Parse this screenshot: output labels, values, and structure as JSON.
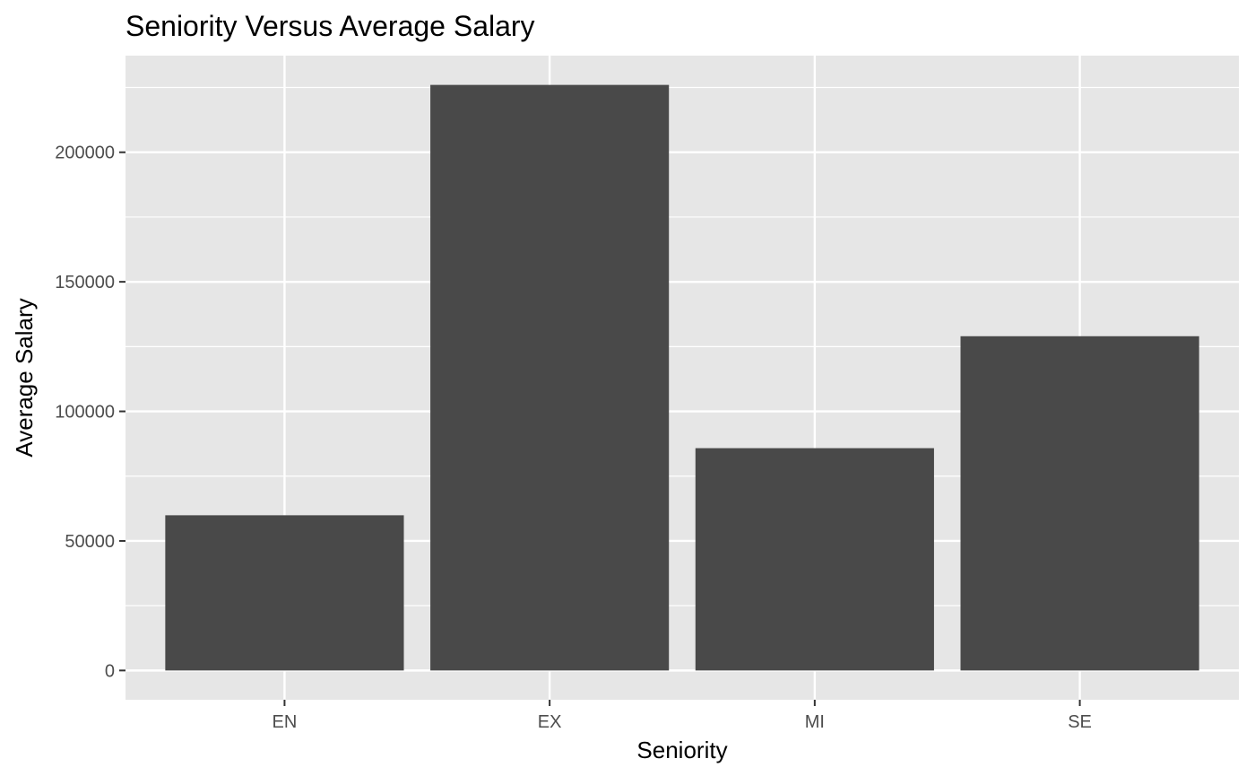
{
  "chart_data": {
    "type": "bar",
    "title": "Seniority Versus Average Salary",
    "xlabel": "Seniority",
    "ylabel": "Average Salary",
    "categories": [
      "EN",
      "EX",
      "MI",
      "SE"
    ],
    "values": [
      59900,
      226000,
      85800,
      129000
    ],
    "ylim": [
      -11300,
      237300
    ],
    "yticks": [
      0,
      50000,
      100000,
      150000,
      200000
    ],
    "ytick_labels": [
      "0",
      "50000",
      "100000",
      "150000",
      "200000"
    ],
    "grid": true,
    "legend": "none",
    "colors": {
      "bar": "#494949",
      "panel": "#e6e6e6",
      "grid": "#ffffff",
      "tick_text": "#4d4d4d",
      "tick_mark": "#333333"
    }
  }
}
